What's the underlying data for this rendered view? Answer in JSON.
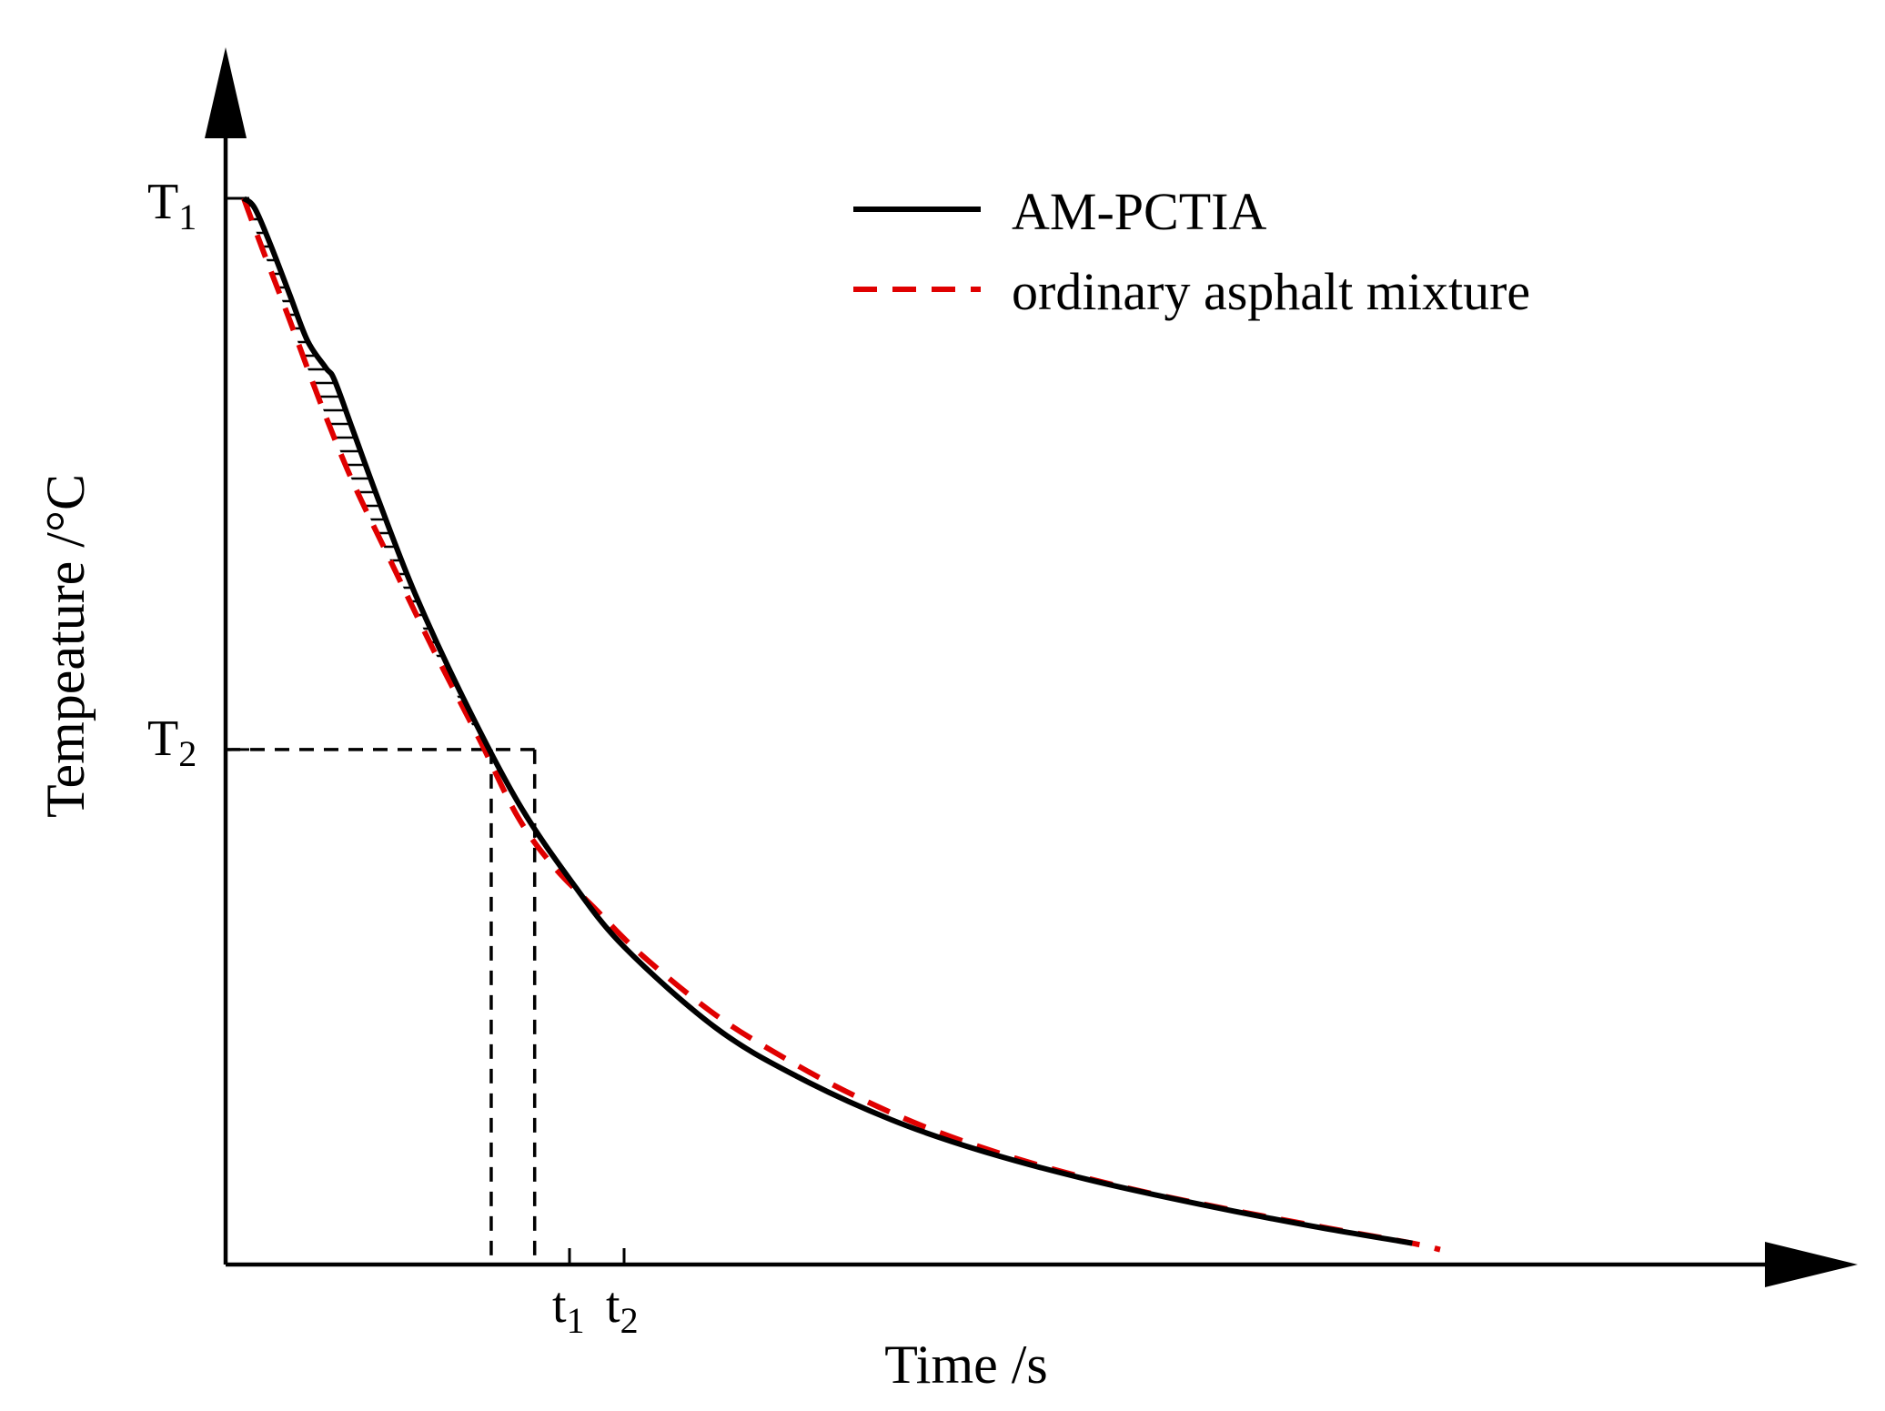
{
  "chart_data": {
    "type": "line",
    "title": "",
    "xlabel": "Time /s",
    "ylabel": "Tempeature /°C",
    "grid": false,
    "legend_position": "top-right",
    "xlim": [
      0,
      100
    ],
    "ylim": [
      0,
      100
    ],
    "colors": {
      "am_pctia": "#000000",
      "ordinary": "#e00000",
      "axis": "#000000",
      "hatch": "#000000"
    },
    "legend": [
      {
        "label": "AM-PCTIA",
        "color": "#000000",
        "style": "solid"
      },
      {
        "label": "ordinary asphalt mixture",
        "color": "#e00000",
        "style": "dashed"
      }
    ],
    "series": [
      {
        "name": "AM-PCTIA",
        "style": "solid",
        "x": [
          1.5,
          2.4,
          3.7,
          5.3,
          6.8,
          8.3,
          9.0,
          10.5,
          12.7,
          15.7,
          19.7,
          24.2,
          28.6,
          33.0,
          40.6,
          47.4,
          55.1,
          62.5,
          71.3,
          80.5,
          90.0,
          98.3
        ],
        "y": [
          100,
          99.1,
          95.7,
          91.0,
          86.6,
          84.1,
          83.0,
          78.4,
          71.6,
          62.9,
          53.1,
          43.4,
          36.0,
          29.8,
          22.2,
          17.6,
          13.6,
          10.7,
          8.0,
          5.7,
          3.6,
          2.0
        ]
      },
      {
        "name": "ordinary asphalt mixture",
        "style": "dashed",
        "x": [
          1.5,
          3.0,
          5.3,
          7.9,
          10.5,
          13.7,
          17.2,
          21.0,
          24.2,
          27.2,
          30.5,
          34.5,
          40.6,
          46.4,
          52.0,
          58.4,
          66.2,
          74.6,
          83.0,
          91.4,
          98.3,
          100.6
        ],
        "y": [
          100,
          95.4,
          88.6,
          80.7,
          73.5,
          65.9,
          57.7,
          49.3,
          42.0,
          37.3,
          33.5,
          29.0,
          23.4,
          19.3,
          15.9,
          12.7,
          9.7,
          7.2,
          5.2,
          3.4,
          2.0,
          1.4
        ]
      }
    ],
    "reference_lines": {
      "T2_level": 48.3,
      "t1": 22.0,
      "t2": 25.6
    },
    "annotations": {
      "T1": {
        "main": "T",
        "sub": "1"
      },
      "T2": {
        "main": "T",
        "sub": "2"
      },
      "t1": {
        "main": "t",
        "sub": "1"
      },
      "t2": {
        "main": "t",
        "sub": "2"
      }
    },
    "hatched_region": {
      "between": [
        "AM-PCTIA",
        "ordinary asphalt mixture"
      ],
      "from_x": 1.5,
      "to_x": 25.6
    }
  }
}
